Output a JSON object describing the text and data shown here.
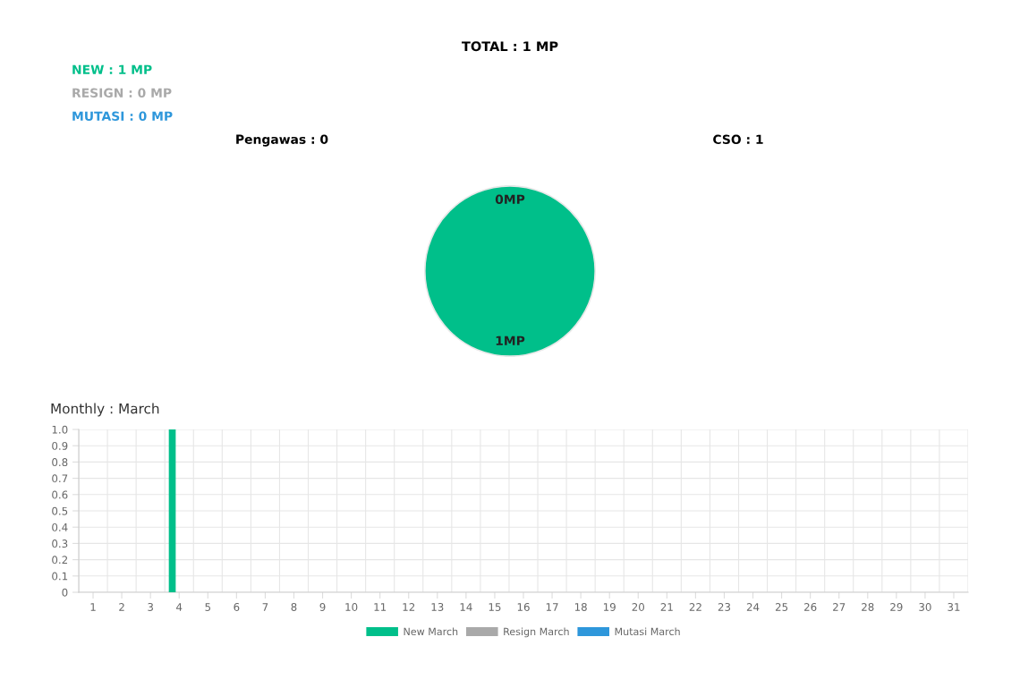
{
  "chart_data": [
    {
      "type": "pie",
      "title": "TOTAL : 1 MP",
      "annotations": [
        "NEW : 1 MP",
        "RESIGN : 0 MP",
        "MUTASI : 0 MP",
        "Pengawas : 0",
        "CSO : 1"
      ],
      "categories": [
        null,
        null
      ],
      "values": [
        0,
        1
      ],
      "colors": [
        "#00bf8a",
        "#00bf8a"
      ],
      "value_labels": [
        "0MP",
        "1MP"
      ],
      "legend": false
    },
    {
      "type": "bar",
      "title": "Monthly : March",
      "categories": [
        "1",
        "2",
        "3",
        "4",
        "5",
        "6",
        "7",
        "8",
        "9",
        "10",
        "11",
        "12",
        "13",
        "14",
        "15",
        "16",
        "17",
        "18",
        "19",
        "20",
        "21",
        "22",
        "23",
        "24",
        "25",
        "26",
        "27",
        "28",
        "29",
        "30",
        "31"
      ],
      "series": [
        {
          "name": "New March",
          "color": "#00bf8a",
          "values": [
            0,
            0,
            0,
            1,
            0,
            0,
            0,
            0,
            0,
            0,
            0,
            0,
            0,
            0,
            0,
            0,
            0,
            0,
            0,
            0,
            0,
            0,
            0,
            0,
            0,
            0,
            0,
            0,
            0,
            0,
            0
          ]
        },
        {
          "name": "Resign March",
          "color": "#a9a9a9",
          "values": [
            0,
            0,
            0,
            0,
            0,
            0,
            0,
            0,
            0,
            0,
            0,
            0,
            0,
            0,
            0,
            0,
            0,
            0,
            0,
            0,
            0,
            0,
            0,
            0,
            0,
            0,
            0,
            0,
            0,
            0,
            0
          ]
        },
        {
          "name": "Mutasi March",
          "color": "#2e97db",
          "values": [
            0,
            0,
            0,
            0,
            0,
            0,
            0,
            0,
            0,
            0,
            0,
            0,
            0,
            0,
            0,
            0,
            0,
            0,
            0,
            0,
            0,
            0,
            0,
            0,
            0,
            0,
            0,
            0,
            0,
            0,
            0
          ]
        }
      ],
      "ylim": [
        0,
        1
      ],
      "yticks": [
        0,
        0.1,
        0.2,
        0.3,
        0.4,
        0.5,
        0.6,
        0.7,
        0.8,
        0.9,
        {
          "value": 1,
          "label": "1.0"
        }
      ],
      "grid": true,
      "legend": "bottom"
    }
  ]
}
